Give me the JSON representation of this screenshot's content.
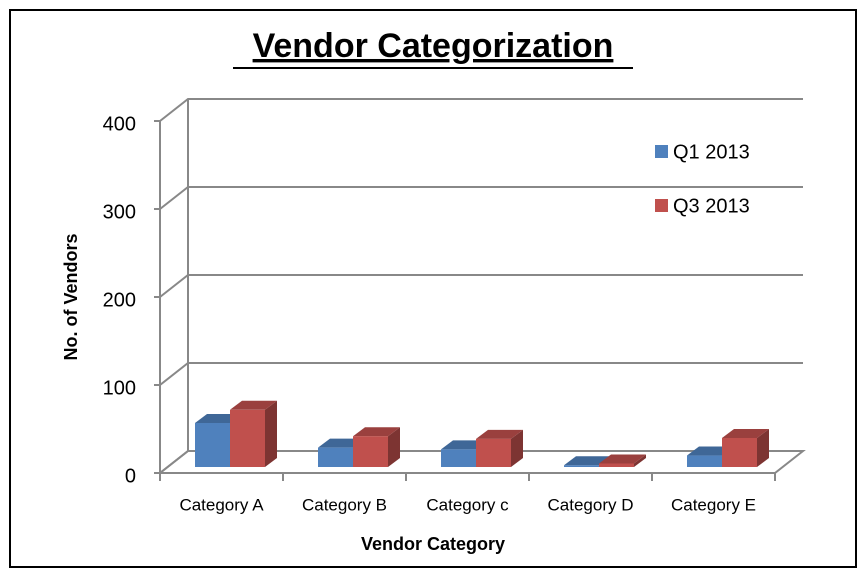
{
  "chart_data": {
    "type": "bar3d",
    "title": "Vendor Categorization",
    "x_label": "Vendor Category",
    "y_label": "No. of  Vendors",
    "categories": [
      "Category A",
      "Category B",
      "Category c",
      "Category D",
      "Category E"
    ],
    "series": [
      {
        "name": "Q1 2013",
        "color": "#4f81bd",
        "values": [
          50,
          22,
          20,
          2,
          13
        ]
      },
      {
        "name": "Q3 2013",
        "color": "#c0504d",
        "values": [
          65,
          35,
          32,
          4,
          33
        ]
      }
    ],
    "ylim": [
      0,
      400
    ],
    "yticks": [
      0,
      100,
      200,
      300,
      400
    ],
    "grid": true,
    "legend": "upper right"
  }
}
